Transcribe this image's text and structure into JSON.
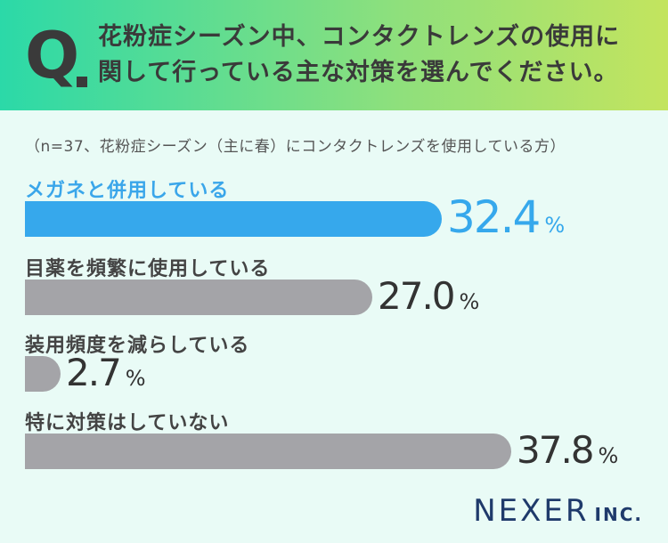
{
  "header": {
    "q_mark": "Q",
    "question_line1": "花粉症シーズン中、コンタクトレンズの使用に",
    "question_line2": "関して行っている主な対策を選んでください。"
  },
  "note": "（n=37、花粉症シーズン（主に春）にコンタクトレンズを使用している方）",
  "logo": {
    "main": "NEXER",
    "suffix": "INC."
  },
  "colors": {
    "highlight": "#36a8ec",
    "bar": "#a4a4a8",
    "header_start": "#2bd9a8",
    "header_end": "#c3e45e"
  },
  "chart_data": {
    "type": "bar",
    "orientation": "horizontal",
    "unit": "%",
    "categories": [
      "メガネと併用している",
      "目薬を頻繁に使用している",
      "装用頻度を減らしている",
      "特に対策はしていない"
    ],
    "values": [
      32.4,
      27.0,
      2.7,
      37.8
    ],
    "value_labels": [
      "32.4",
      "27.0",
      "2.7",
      "37.8"
    ],
    "highlight_index": 0,
    "xlim": [
      0,
      37.8
    ]
  }
}
